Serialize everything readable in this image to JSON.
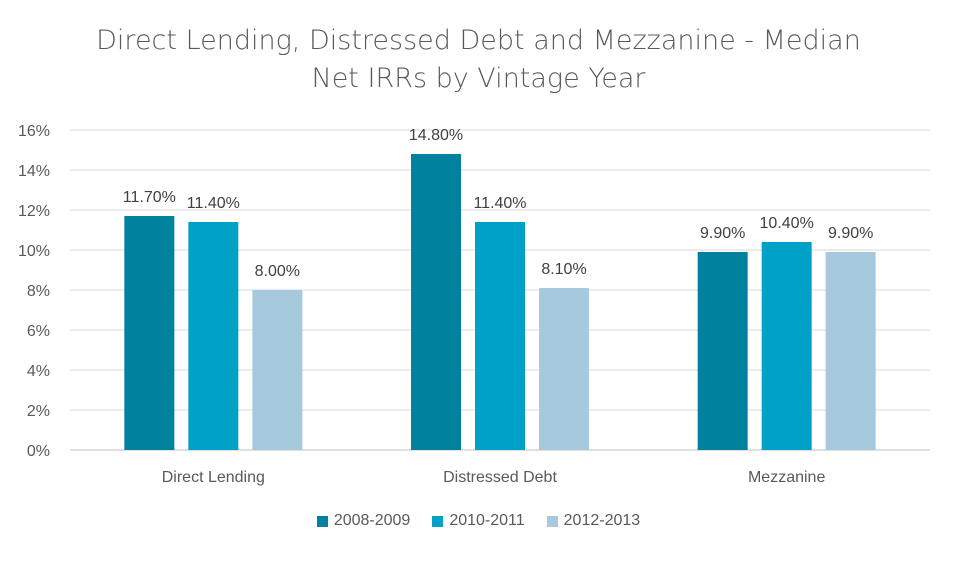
{
  "chart_data": {
    "type": "bar",
    "title_line1": "Direct Lending, Distressed Debt and Mezzanine - Median",
    "title_line2": "Net IRRs by Vintage Year",
    "categories": [
      "Direct Lending",
      "Distressed Debt",
      "Mezzanine"
    ],
    "series": [
      {
        "name": "2008-2009",
        "color": "#00819e",
        "values": [
          11.7,
          14.8,
          9.9
        ],
        "labels": [
          "11.70%",
          "14.80%",
          "9.90%"
        ]
      },
      {
        "name": "2010-2011",
        "color": "#00a1c7",
        "values": [
          11.4,
          11.4,
          10.4
        ],
        "labels": [
          "11.40%",
          "11.40%",
          "10.40%"
        ]
      },
      {
        "name": "2012-2013",
        "color": "#a6c9dd",
        "values": [
          8.0,
          8.1,
          9.9
        ],
        "labels": [
          "8.00%",
          "8.10%",
          "9.90%"
        ]
      }
    ],
    "yticks": [
      "0%",
      "2%",
      "4%",
      "6%",
      "8%",
      "10%",
      "12%",
      "14%",
      "16%"
    ],
    "ylim": [
      0,
      16
    ],
    "grid": true,
    "legend_position": "bottom"
  }
}
